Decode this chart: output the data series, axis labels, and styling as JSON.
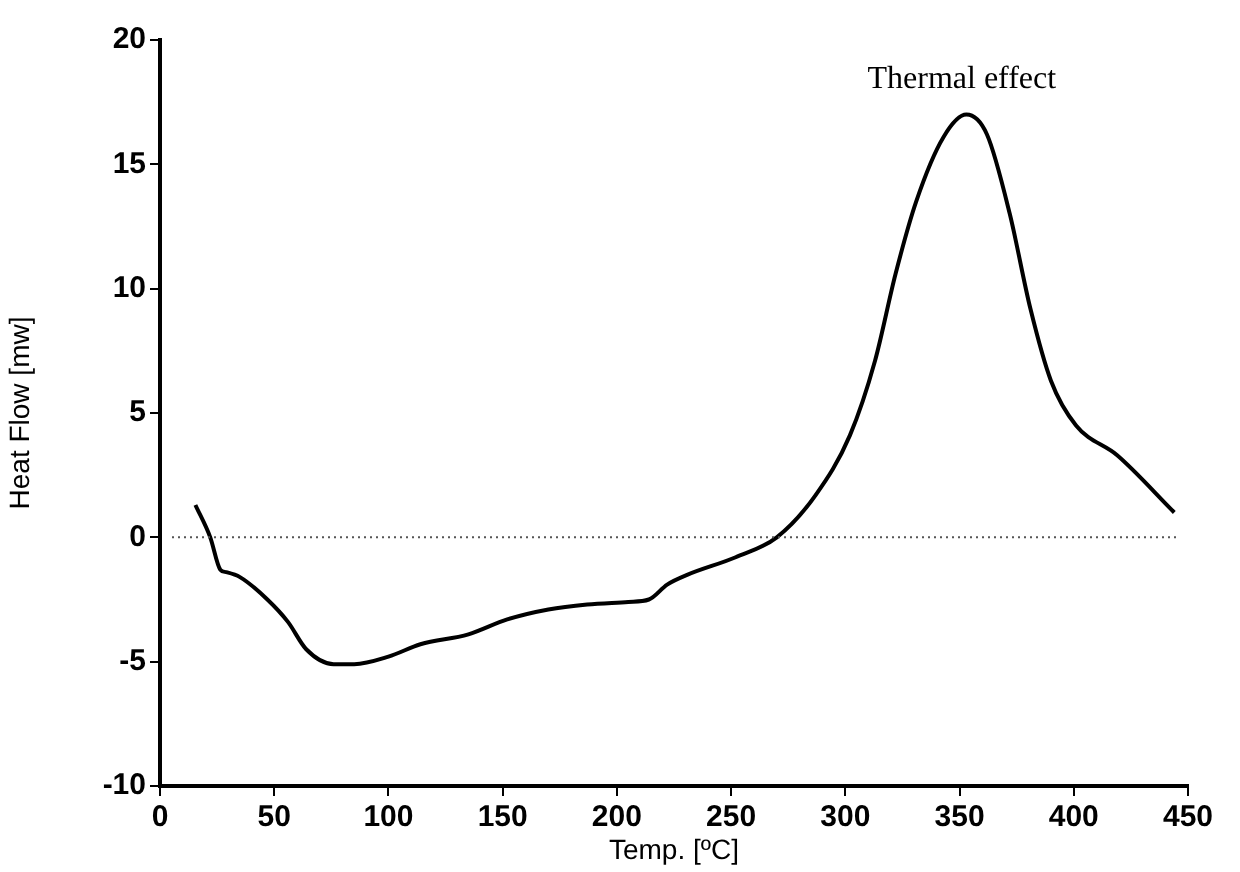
{
  "chart_data": {
    "type": "line",
    "xlabel": "Temp. [ºC]",
    "ylabel": "Heat Flow [mw]",
    "xlim": [
      0,
      450
    ],
    "xticks": [
      0,
      50,
      100,
      150,
      200,
      250,
      300,
      350,
      400,
      450
    ],
    "ylim": [
      -10,
      20
    ],
    "yticks": [
      -10,
      -5,
      0,
      5,
      10,
      15,
      20
    ],
    "grid": false,
    "legend": false,
    "marker": "none",
    "line_style": "solid",
    "ref_lines": [
      {
        "axis": "y",
        "value": 0,
        "color": "#555555",
        "line_style": "dotted"
      }
    ],
    "annotations": [
      "Thermal effect"
    ],
    "series": [
      {
        "color": "#000000",
        "x": [
          15.5,
          22,
          26.4,
          29,
          35,
          47,
          56,
          64,
          76,
          85,
          100,
          114,
          135,
          152,
          170,
          187,
          205,
          214,
          222,
          231,
          252,
          270,
          287,
          302,
          313,
          322,
          331,
          343,
          353,
          362,
          372,
          381,
          390,
          401,
          419,
          444
        ],
        "values": [
          1.3,
          0,
          -1.3,
          -1.4,
          -1.6,
          -2.5,
          -3.4,
          -4.5,
          -5.1,
          -5.1,
          -4.8,
          -4.3,
          -3.9,
          -3.3,
          -2.9,
          -2.7,
          -2.6,
          -2.5,
          -1.9,
          -1.5,
          -0.8,
          0,
          1.7,
          4.1,
          7.1,
          10.6,
          13.5,
          16.1,
          17,
          16.2,
          13,
          9.2,
          6.3,
          4.5,
          3.3,
          1
        ]
      }
    ]
  }
}
